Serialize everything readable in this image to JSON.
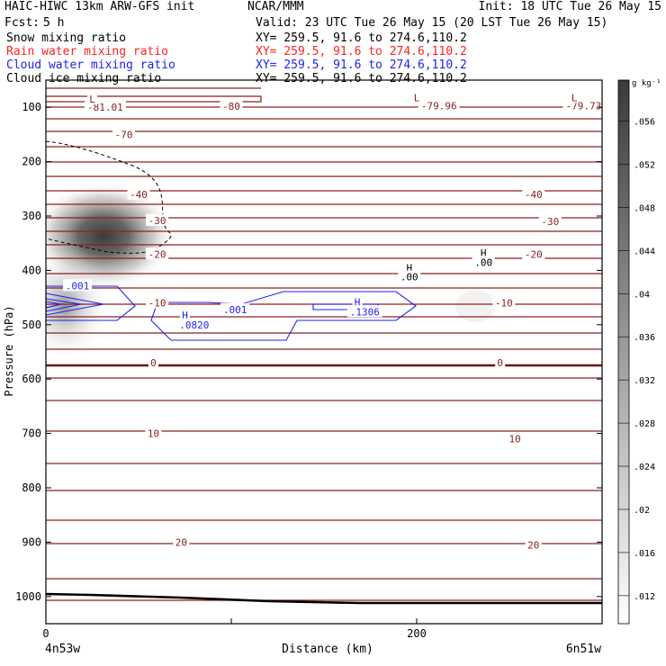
{
  "header": {
    "title_left": "HAIC-HIWC 13km ARW-GFS init",
    "title_center": "NCAR/MMM",
    "init": "Init: 18 UTC Tue 26 May 15",
    "fcst_label": "Fcst:",
    "fcst_value": "5 h",
    "valid": "Valid: 23 UTC Tue 26 May 15 (20 LST Tue 26 May 15)",
    "fields": [
      {
        "label": "Snow mixing ratio",
        "xy": "XY= 259.5, 91.6 to 274.6,110.2",
        "color": "#000000"
      },
      {
        "label": "Rain water mixing ratio",
        "xy": "XY= 259.5, 91.6 to 274.6,110.2",
        "color": "#ff2222"
      },
      {
        "label": "Cloud water mixing ratio",
        "xy": "XY= 259.5, 91.6 to 274.6,110.2",
        "color": "#2222ee"
      },
      {
        "label": "Cloud ice mixing ratio",
        "xy": "XY= 259.5, 91.6 to 274.6,110.2",
        "color": "#000000"
      }
    ]
  },
  "chart_data": {
    "type": "heatmap",
    "xlabel": "Distance (km)",
    "ylabel": "Pressure (hPa)",
    "x_endpoint_left": "4n53w",
    "x_endpoint_right": "6n51w",
    "xlim": [
      0,
      300
    ],
    "ylim": [
      1050,
      50
    ],
    "x_ticks": [
      0,
      100,
      200,
      300
    ],
    "x_tick_labels": [
      "0",
      "",
      "200",
      ""
    ],
    "y_ticks": [
      100,
      200,
      300,
      400,
      500,
      600,
      700,
      800,
      900,
      1000
    ],
    "colorbar": {
      "unit": "g kg⁻¹",
      "tick_labels": [
        ".012",
        ".016",
        ".02",
        ".024",
        ".028",
        ".032",
        ".036",
        ".04",
        ".044",
        ".048",
        ".052",
        ".056"
      ]
    },
    "snow_mixing_ratio_blob": {
      "center_x_km": 35,
      "center_p_hPa": 340,
      "max": 0.056
    },
    "isotherm_labels": [
      {
        "text": "-81.01",
        "x": 32,
        "p": 100
      },
      {
        "text": "-79.96",
        "x": 212,
        "p": 97
      },
      {
        "text": "-79.73",
        "x": 290,
        "p": 97
      },
      {
        "text": "-80",
        "x": 100,
        "p": 98
      },
      {
        "text": "-70",
        "x": 42,
        "p": 150
      },
      {
        "text": "-40",
        "x": 50,
        "p": 260
      },
      {
        "text": "-40",
        "x": 263,
        "p": 260
      },
      {
        "text": "-30",
        "x": 60,
        "p": 308
      },
      {
        "text": "-30",
        "x": 272,
        "p": 310
      },
      {
        "text": "-20",
        "x": 60,
        "p": 370
      },
      {
        "text": "-20",
        "x": 263,
        "p": 370
      },
      {
        "text": "-10",
        "x": 60,
        "p": 460
      },
      {
        "text": "-10",
        "x": 247,
        "p": 460
      },
      {
        "text": "0",
        "x": 58,
        "p": 570
      },
      {
        "text": "0",
        "x": 245,
        "p": 570
      },
      {
        "text": "10",
        "x": 58,
        "p": 700
      },
      {
        "text": "10",
        "x": 253,
        "p": 710
      },
      {
        "text": "20",
        "x": 73,
        "p": 900
      },
      {
        "text": "20",
        "x": 263,
        "p": 905
      }
    ],
    "low_labels": [
      {
        "text": "L",
        "x": 25,
        "p": 85
      },
      {
        "text": "L",
        "x": 200,
        "p": 82
      },
      {
        "text": "L",
        "x": 285,
        "p": 82
      }
    ],
    "cloud_water_labels": [
      {
        "text": ".001",
        "x": 17,
        "p": 428
      },
      {
        "text": ".001",
        "x": 102,
        "p": 472
      },
      {
        "text": "H",
        "x": 75,
        "p": 482
      },
      {
        "text": ".0820",
        "x": 80,
        "p": 500
      },
      {
        "text": "H",
        "x": 168,
        "p": 458
      },
      {
        "text": ".1306",
        "x": 172,
        "p": 476
      }
    ],
    "high_labels": [
      {
        "text": "H",
        "x": 196,
        "p": 395
      },
      {
        "text": ".00",
        "x": 196,
        "p": 412
      },
      {
        "text": "H",
        "x": 236,
        "p": 368
      },
      {
        "text": ".00",
        "x": 236,
        "p": 385
      }
    ]
  }
}
